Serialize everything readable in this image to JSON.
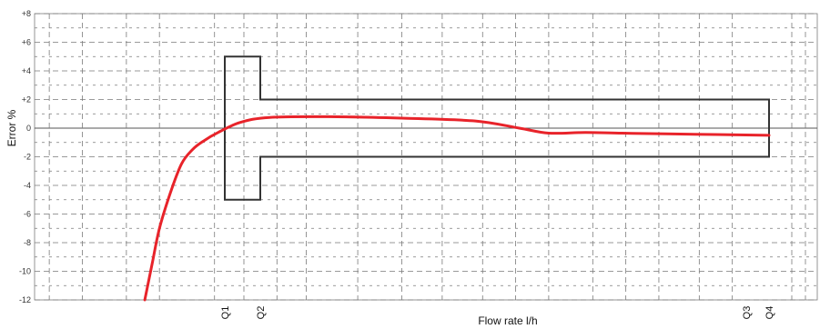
{
  "chart_data": {
    "type": "line",
    "xlabel": "Flow rate l/h",
    "ylabel": "Error %",
    "ylim": [
      -12,
      8
    ],
    "y_ticks": [
      "+8",
      "+6",
      "+4",
      "+2",
      "0",
      "-2",
      "-4",
      "-6",
      "-8",
      "-10",
      "-12"
    ],
    "y_tick_values": [
      8,
      6,
      4,
      2,
      0,
      -2,
      -4,
      -6,
      -8,
      -10,
      -12
    ],
    "x_markers": [
      "Q1",
      "Q2",
      "Q3",
      "Q4"
    ],
    "grid": true,
    "colors": {
      "curve": "#e8232a",
      "envelope": "#333333",
      "grid": "#7a7a7a",
      "zero_line": "#555555"
    },
    "series": [
      {
        "name": "",
        "x_rel": [
          0.15,
          0.16,
          0.17,
          0.185,
          0.2,
          0.215,
          0.23,
          0.25,
          0.28,
          0.32,
          0.4,
          0.5,
          0.6,
          0.66,
          0.7,
          0.75,
          0.8,
          0.86,
          1.0
        ],
        "values": [
          -12,
          -9.5,
          -7.0,
          -4.5,
          -2.5,
          -1.5,
          -0.9,
          -0.3,
          0.4,
          0.75,
          0.8,
          0.7,
          0.5,
          0.0,
          -0.35,
          -0.3,
          -0.35,
          -0.4,
          -0.5
        ]
      }
    ],
    "envelope": {
      "q1_q2": {
        "upper": 5,
        "lower": -5
      },
      "q2_q4": {
        "upper": 2,
        "lower": -2
      }
    }
  }
}
